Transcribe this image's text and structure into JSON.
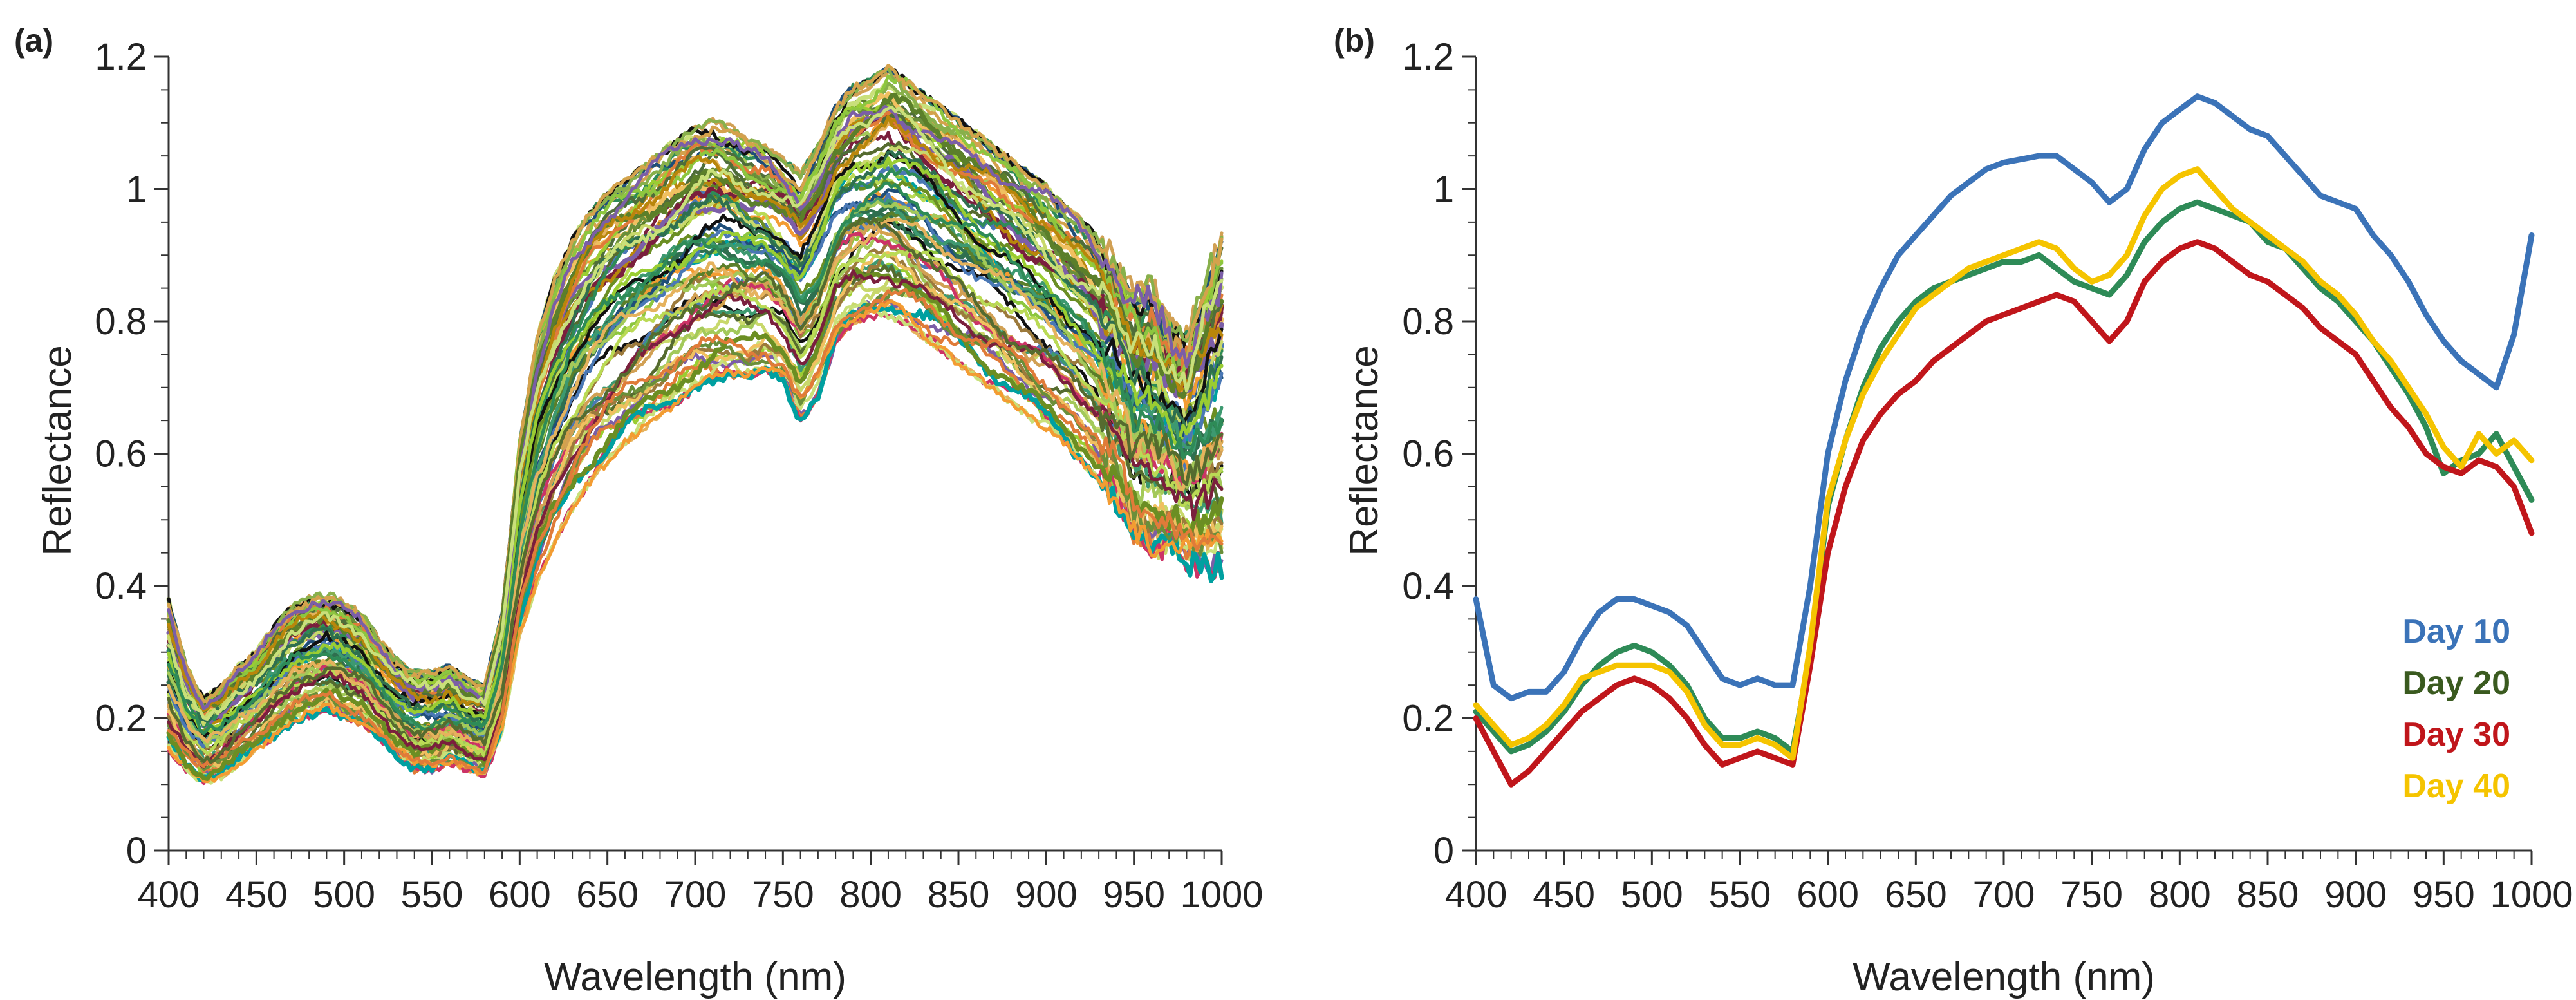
{
  "chart_data": [
    {
      "type": "line",
      "panel_label": "(a)",
      "xlabel": "Wavelength (nm)",
      "ylabel": "Reflectance",
      "xlim": [
        400,
        1000
      ],
      "ylim": [
        0,
        1.2
      ],
      "x_ticks": [
        "400",
        "450",
        "500",
        "550",
        "600",
        "650",
        "700",
        "750",
        "800",
        "850",
        "900",
        "950",
        "1000"
      ],
      "y_ticks": [
        "0",
        "0.2",
        "0.4",
        "0.6",
        "0.8",
        "1",
        "1.2"
      ],
      "grid": false,
      "legend": "none",
      "series_count": 80,
      "x": [
        400,
        410,
        420,
        430,
        440,
        450,
        460,
        470,
        480,
        490,
        500,
        510,
        520,
        530,
        540,
        550,
        560,
        570,
        580,
        590,
        600,
        610,
        620,
        630,
        640,
        650,
        660,
        670,
        680,
        690,
        700,
        710,
        720,
        730,
        740,
        750,
        760,
        770,
        780,
        790,
        800,
        810,
        820,
        830,
        840,
        850,
        860,
        870,
        880,
        890,
        900,
        910,
        920,
        930,
        940,
        950,
        960,
        970,
        980,
        990,
        1000
      ],
      "band_upper": [
        0.38,
        0.28,
        0.23,
        0.25,
        0.28,
        0.3,
        0.34,
        0.37,
        0.385,
        0.39,
        0.38,
        0.36,
        0.32,
        0.29,
        0.27,
        0.27,
        0.28,
        0.26,
        0.25,
        0.36,
        0.62,
        0.78,
        0.87,
        0.93,
        0.97,
        1.0,
        1.02,
        1.04,
        1.06,
        1.08,
        1.1,
        1.11,
        1.1,
        1.08,
        1.07,
        1.05,
        1.03,
        1.07,
        1.13,
        1.16,
        1.17,
        1.19,
        1.17,
        1.15,
        1.13,
        1.11,
        1.09,
        1.07,
        1.05,
        1.03,
        1.01,
        0.98,
        0.96,
        0.93,
        0.89,
        0.85,
        0.86,
        0.8,
        0.78,
        0.86,
        0.93
      ],
      "band_lower": [
        0.15,
        0.12,
        0.1,
        0.11,
        0.13,
        0.15,
        0.17,
        0.19,
        0.2,
        0.21,
        0.2,
        0.19,
        0.17,
        0.14,
        0.12,
        0.12,
        0.13,
        0.12,
        0.11,
        0.18,
        0.32,
        0.4,
        0.46,
        0.51,
        0.55,
        0.58,
        0.61,
        0.63,
        0.65,
        0.67,
        0.69,
        0.7,
        0.71,
        0.71,
        0.72,
        0.7,
        0.64,
        0.68,
        0.76,
        0.79,
        0.8,
        0.8,
        0.79,
        0.77,
        0.75,
        0.73,
        0.71,
        0.69,
        0.67,
        0.65,
        0.63,
        0.61,
        0.58,
        0.55,
        0.52,
        0.47,
        0.45,
        0.46,
        0.43,
        0.42,
        0.42
      ]
    },
    {
      "type": "line",
      "panel_label": "(b)",
      "xlabel": "Wavelength (nm)",
      "ylabel": "Reflectance",
      "xlim": [
        400,
        1000
      ],
      "ylim": [
        0,
        1.2
      ],
      "x_ticks": [
        "400",
        "450",
        "500",
        "550",
        "600",
        "650",
        "700",
        "750",
        "800",
        "850",
        "900",
        "950",
        "1000"
      ],
      "y_ticks": [
        "0",
        "0.2",
        "0.4",
        "0.6",
        "0.8",
        "1",
        "1.2"
      ],
      "grid": false,
      "legend": "bottom-right",
      "x": [
        400,
        410,
        420,
        430,
        440,
        450,
        460,
        470,
        480,
        490,
        500,
        510,
        520,
        530,
        540,
        550,
        560,
        570,
        580,
        590,
        600,
        610,
        620,
        630,
        640,
        650,
        660,
        670,
        680,
        690,
        700,
        710,
        720,
        730,
        740,
        750,
        760,
        770,
        780,
        790,
        800,
        810,
        820,
        830,
        840,
        850,
        860,
        870,
        880,
        890,
        900,
        910,
        920,
        930,
        940,
        950,
        960,
        970,
        980,
        990,
        1000
      ],
      "series": [
        {
          "name": "Day 10",
          "color": "#3b73b8",
          "values": [
            0.38,
            0.25,
            0.23,
            0.24,
            0.24,
            0.27,
            0.32,
            0.36,
            0.38,
            0.38,
            0.37,
            0.36,
            0.34,
            0.3,
            0.26,
            0.25,
            0.26,
            0.25,
            0.25,
            0.4,
            0.6,
            0.71,
            0.79,
            0.85,
            0.9,
            0.93,
            0.96,
            0.99,
            1.01,
            1.03,
            1.04,
            1.045,
            1.05,
            1.05,
            1.03,
            1.01,
            0.98,
            1.0,
            1.06,
            1.1,
            1.12,
            1.14,
            1.13,
            1.11,
            1.09,
            1.08,
            1.05,
            1.02,
            0.99,
            0.98,
            0.97,
            0.93,
            0.9,
            0.86,
            0.81,
            0.77,
            0.74,
            0.72,
            0.7,
            0.78,
            0.93
          ]
        },
        {
          "name": "Day 20",
          "color": "#2e8b57",
          "values": [
            0.21,
            0.18,
            0.15,
            0.16,
            0.18,
            0.21,
            0.25,
            0.28,
            0.3,
            0.31,
            0.3,
            0.28,
            0.25,
            0.2,
            0.17,
            0.17,
            0.18,
            0.17,
            0.15,
            0.3,
            0.52,
            0.62,
            0.7,
            0.76,
            0.8,
            0.83,
            0.85,
            0.86,
            0.87,
            0.88,
            0.89,
            0.89,
            0.9,
            0.88,
            0.86,
            0.85,
            0.84,
            0.87,
            0.92,
            0.95,
            0.97,
            0.98,
            0.97,
            0.96,
            0.95,
            0.92,
            0.91,
            0.88,
            0.85,
            0.83,
            0.8,
            0.77,
            0.73,
            0.69,
            0.64,
            0.57,
            0.59,
            0.6,
            0.63,
            0.58,
            0.53
          ]
        },
        {
          "name": "Day 30",
          "color": "#c0161b",
          "values": [
            0.2,
            0.15,
            0.1,
            0.12,
            0.15,
            0.18,
            0.21,
            0.23,
            0.25,
            0.26,
            0.25,
            0.23,
            0.2,
            0.16,
            0.13,
            0.14,
            0.15,
            0.14,
            0.13,
            0.28,
            0.45,
            0.55,
            0.62,
            0.66,
            0.69,
            0.71,
            0.74,
            0.76,
            0.78,
            0.8,
            0.81,
            0.82,
            0.83,
            0.84,
            0.83,
            0.8,
            0.77,
            0.8,
            0.86,
            0.89,
            0.91,
            0.92,
            0.91,
            0.89,
            0.87,
            0.86,
            0.84,
            0.82,
            0.79,
            0.77,
            0.75,
            0.71,
            0.67,
            0.64,
            0.6,
            0.58,
            0.57,
            0.59,
            0.58,
            0.55,
            0.48
          ]
        },
        {
          "name": "Day 40",
          "color": "#f5c400",
          "values": [
            0.22,
            0.19,
            0.16,
            0.17,
            0.19,
            0.22,
            0.26,
            0.27,
            0.28,
            0.28,
            0.28,
            0.27,
            0.24,
            0.19,
            0.16,
            0.16,
            0.17,
            0.16,
            0.14,
            0.31,
            0.53,
            0.62,
            0.69,
            0.74,
            0.78,
            0.82,
            0.84,
            0.86,
            0.88,
            0.89,
            0.9,
            0.91,
            0.92,
            0.91,
            0.88,
            0.86,
            0.87,
            0.9,
            0.96,
            1.0,
            1.02,
            1.03,
            1.0,
            0.97,
            0.95,
            0.93,
            0.91,
            0.89,
            0.86,
            0.84,
            0.81,
            0.77,
            0.74,
            0.7,
            0.66,
            0.61,
            0.58,
            0.63,
            0.6,
            0.62,
            0.59
          ]
        }
      ]
    }
  ]
}
